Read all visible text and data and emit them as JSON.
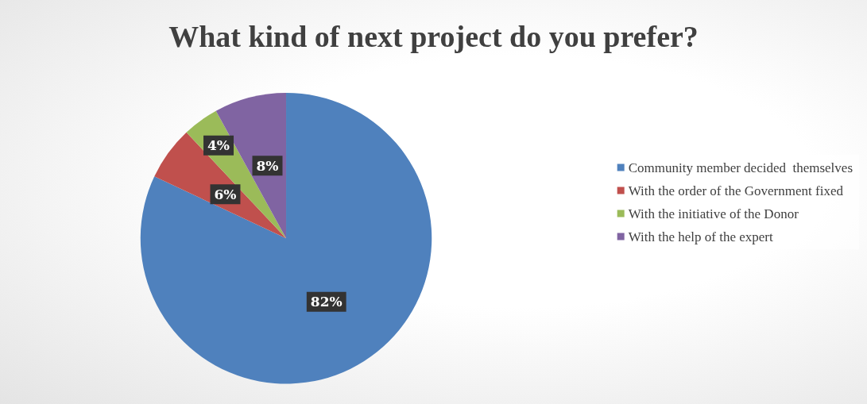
{
  "chart_data": {
    "type": "pie",
    "title": "What kind of next project do you prefer?",
    "categories": [
      "Community member decided  themselves",
      "With the order of the Government fixed",
      "With the initiative of the Donor",
      "With the help of the expert"
    ],
    "values": [
      82,
      6,
      4,
      8
    ],
    "colors": [
      "#4f81bd",
      "#c0504d",
      "#9bbb59",
      "#8064a2"
    ],
    "value_labels": [
      "82%",
      "6%",
      "4%",
      "8%"
    ],
    "legend": "right"
  }
}
